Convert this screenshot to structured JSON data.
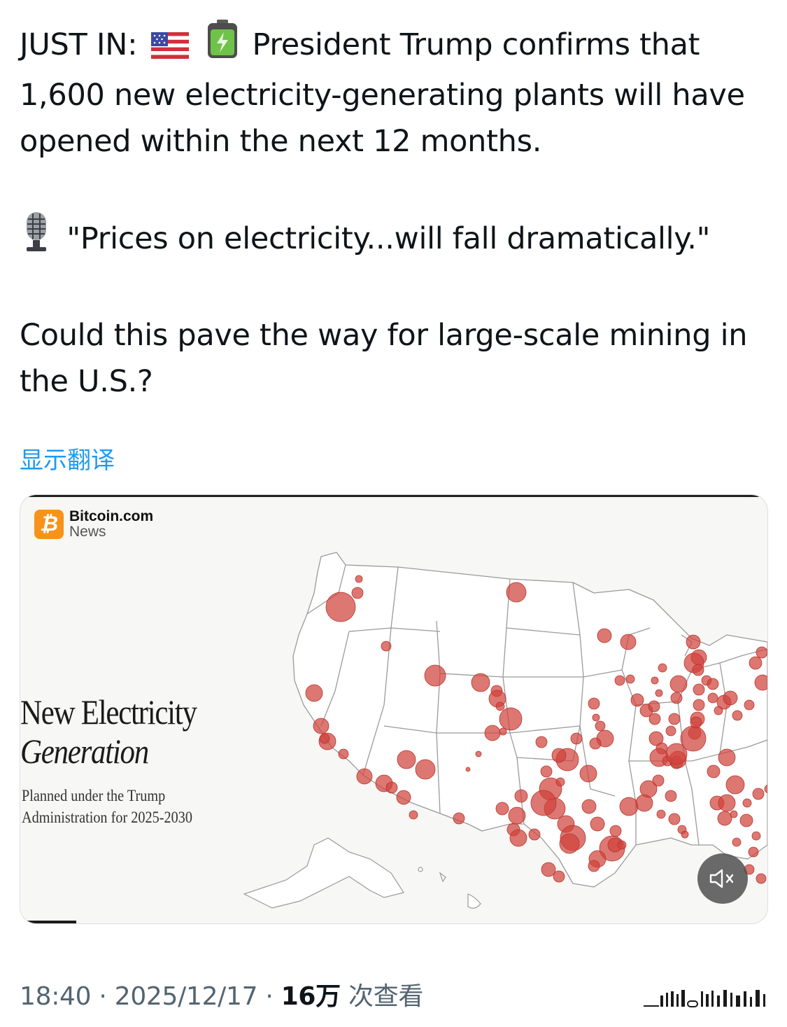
{
  "tweet": {
    "line1_prefix": "JUST IN:",
    "line1_text": "President Trump confirms that",
    "line2": "1,600 new electricity-generating plants will have",
    "line3": "opened within the next 12 months.",
    "quote": "\"Prices on electricity...will fall dramatically.\"",
    "question_l1": "Could this pave the way for large-scale mining in",
    "question_l2": "the U.S.?",
    "emoji_icons": [
      "us-flag-icon",
      "battery-icon",
      "microphone-icon"
    ]
  },
  "translate_label": "显示翻译",
  "media": {
    "logo_name": "Bitcoin.com",
    "logo_sub": "News",
    "title_line1": "New Electricity",
    "title_line2": "Generation",
    "subtitle_line1": "Planned under the Trump",
    "subtitle_line2": "Administration for 2025-2030",
    "mute_icon": "speaker-muted-icon"
  },
  "meta": {
    "time": "18:40",
    "sep": "·",
    "date": "2025/12/17",
    "views": "16万",
    "views_label": "次查看"
  },
  "colors": {
    "link": "#1d9bf0",
    "bubble": "#d0433b",
    "meta": "#536471"
  }
}
